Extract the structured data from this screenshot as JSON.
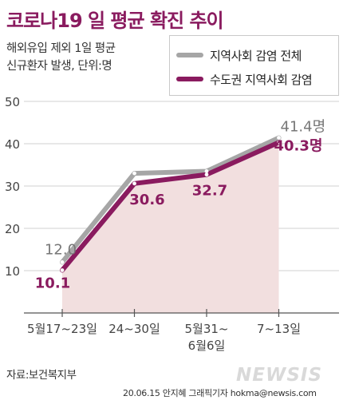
{
  "title": "코로나19 일 평균 확진 추이",
  "subtitle_line1": "해외유입 제외 1일 평균",
  "subtitle_line2": "신규환자 발생, 단위:명",
  "legend": {
    "national": "지역사회 감염 전체",
    "capital": "수도권 지역사회 감염"
  },
  "source": "자료:보건복지부",
  "credit": "20.06.15 안지혜 그래픽기자 hokma@newsis.com",
  "watermark": "NEWSIS",
  "colors": {
    "national": "#a6a6a6",
    "capital": "#8a1b5f",
    "area": "#f2dfdf",
    "title": "#8a1b5f"
  },
  "chart_data": {
    "type": "line",
    "categories": [
      "5월17~23일",
      "24~30일",
      "5월31~\n6월6일",
      "7~13일"
    ],
    "ylim": [
      0,
      50
    ],
    "yticks": [
      10,
      20,
      30,
      40,
      50
    ],
    "series": [
      {
        "name": "지역사회 감염 전체",
        "values": [
          12.0,
          33.0,
          33.5,
          41.4
        ],
        "labels": [
          "12.0",
          "",
          "",
          "41.4명"
        ]
      },
      {
        "name": "수도권 지역사회 감염",
        "values": [
          10.1,
          30.6,
          32.7,
          40.3
        ],
        "labels": [
          "10.1",
          "30.6",
          "32.7",
          "40.3명"
        ]
      }
    ]
  }
}
